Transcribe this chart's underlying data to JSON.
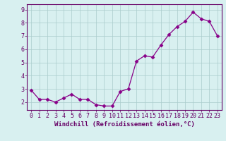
{
  "x": [
    0,
    1,
    2,
    3,
    4,
    5,
    6,
    7,
    8,
    9,
    10,
    11,
    12,
    13,
    14,
    15,
    16,
    17,
    18,
    19,
    20,
    21,
    22,
    23
  ],
  "y": [
    2.9,
    2.2,
    2.2,
    2.0,
    2.3,
    2.6,
    2.2,
    2.2,
    1.8,
    1.7,
    1.7,
    2.8,
    3.0,
    5.1,
    5.5,
    5.4,
    6.3,
    7.1,
    7.7,
    8.1,
    8.8,
    8.3,
    8.1,
    7.0
  ],
  "line_color": "#880088",
  "marker": "D",
  "marker_size": 2.5,
  "bg_color": "#d8f0f0",
  "grid_color": "#aacccc",
  "xlabel": "Windchill (Refroidissement éolien,°C)",
  "xlim": [
    -0.5,
    23.5
  ],
  "ylim": [
    1.4,
    9.4
  ],
  "yticks": [
    2,
    3,
    4,
    5,
    6,
    7,
    8,
    9
  ],
  "xticks": [
    0,
    1,
    2,
    3,
    4,
    5,
    6,
    7,
    8,
    9,
    10,
    11,
    12,
    13,
    14,
    15,
    16,
    17,
    18,
    19,
    20,
    21,
    22,
    23
  ],
  "xlabel_fontsize": 6.5,
  "tick_fontsize": 6.0,
  "spine_color": "#660066",
  "label_color": "#660066"
}
